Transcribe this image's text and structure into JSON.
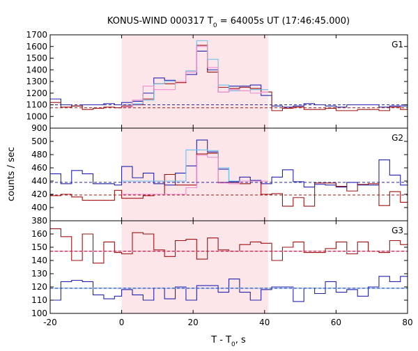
{
  "chart_data": {
    "type": "line",
    "title": "KONUS-WIND 000317 T",
    "title_sub": "0",
    "title_rest": " = 64005s UT (17:46:45.000)",
    "xlabel": "T - T",
    "xlabel_sub": "0",
    "xlabel_rest": ", s",
    "ylabel": "counts / sec",
    "xlim": [
      -20,
      80
    ],
    "xticks": [
      -20,
      0,
      20,
      40,
      60,
      80
    ],
    "highlight_interval": [
      0,
      41
    ],
    "colors": {
      "blue": "#2323b0",
      "red": "#a01010",
      "light_blue": "#6ac0ea",
      "pink": "#f08cd2",
      "band": "#fde6ea"
    },
    "panels": [
      {
        "label": "G1",
        "ylim": [
          900,
          1700
        ],
        "yticks": [
          900,
          1000,
          1100,
          1200,
          1300,
          1400,
          1500,
          1600,
          1700
        ],
        "background_levels": {
          "blue": 1100,
          "red": 1075
        },
        "series": [
          {
            "key": "blue",
            "x": [
              -20,
              -17,
              -14,
              -11,
              -8,
              -5,
              -2,
              0,
              3,
              6,
              9,
              12,
              15,
              18,
              21,
              24,
              27,
              30,
              33,
              36,
              39,
              42,
              45,
              48,
              51,
              54,
              57,
              60,
              63,
              66,
              69,
              72,
              75,
              78,
              80
            ],
            "values": [
              1150,
              1100,
              1090,
              1100,
              1100,
              1110,
              1100,
              1120,
              1130,
              1200,
              1330,
              1310,
              1300,
              1360,
              1560,
              1400,
              1210,
              1260,
              1260,
              1270,
              1180,
              1090,
              1080,
              1090,
              1110,
              1100,
              1090,
              1080,
              1100,
              1100,
              1100,
              1080,
              1090,
              1090,
              1100
            ]
          },
          {
            "key": "red",
            "x": [
              -20,
              -17,
              -14,
              -11,
              -8,
              -5,
              -2,
              0,
              3,
              6,
              9,
              12,
              15,
              18,
              21,
              24,
              27,
              30,
              33,
              36,
              39,
              42,
              45,
              48,
              51,
              54,
              57,
              60,
              63,
              66,
              69,
              72,
              75,
              78,
              80
            ],
            "values": [
              1120,
              1080,
              1090,
              1060,
              1070,
              1080,
              1075,
              1090,
              1100,
              1150,
              1280,
              1280,
              1290,
              1390,
              1610,
              1380,
              1250,
              1240,
              1250,
              1240,
              1210,
              1050,
              1070,
              1080,
              1060,
              1060,
              1070,
              1050,
              1050,
              1060,
              1060,
              1050,
              1080,
              1060,
              1070
            ]
          },
          {
            "key": "light_blue",
            "x": [
              0,
              3,
              6,
              9,
              12,
              15,
              18,
              21,
              24,
              27,
              30,
              33,
              36,
              39,
              41
            ],
            "values": [
              1100,
              1110,
              1140,
              1280,
              1300,
              1300,
              1390,
              1650,
              1490,
              1270,
              1220,
              1220,
              1230,
              1230,
              1230
            ]
          },
          {
            "key": "pink",
            "x": [
              0,
              3,
              6,
              9,
              12,
              15,
              18,
              21,
              24,
              27,
              30,
              33,
              36,
              39,
              41
            ],
            "values": [
              1080,
              1140,
              1260,
              1230,
              1230,
              1300,
              1380,
              1600,
              1420,
              1210,
              1230,
              1220,
              1200,
              1210,
              1210
            ]
          }
        ]
      },
      {
        "label": "G2",
        "ylim": [
          380,
          520
        ],
        "yticks": [
          380,
          400,
          420,
          440,
          460,
          480,
          500
        ],
        "background_levels": {
          "blue": 438,
          "red": 419
        },
        "series": [
          {
            "key": "blue",
            "x": [
              -20,
              -17,
              -14,
              -11,
              -8,
              -5,
              -2,
              0,
              3,
              6,
              9,
              12,
              15,
              18,
              21,
              24,
              27,
              30,
              33,
              36,
              39,
              42,
              45,
              48,
              51,
              54,
              57,
              60,
              63,
              66,
              69,
              72,
              75,
              78,
              80
            ],
            "values": [
              451,
              436,
              456,
              451,
              436,
              436,
              434,
              462,
              445,
              452,
              436,
              434,
              452,
              463,
              502,
              484,
              458,
              439,
              446,
              441,
              436,
              446,
              457,
              439,
              431,
              435,
              434,
              431,
              438,
              434,
              434,
              472,
              449,
              434,
              430
            ]
          },
          {
            "key": "red",
            "x": [
              -20,
              -17,
              -14,
              -11,
              -8,
              -5,
              -2,
              0,
              3,
              6,
              9,
              12,
              15,
              18,
              21,
              24,
              27,
              30,
              33,
              36,
              39,
              42,
              45,
              48,
              51,
              54,
              57,
              60,
              63,
              66,
              69,
              72,
              75,
              78,
              80
            ],
            "values": [
              418,
              420,
              416,
              411,
              411,
              411,
              426,
              414,
              414,
              418,
              420,
              450,
              434,
              434,
              481,
              482,
              438,
              438,
              436,
              440,
              420,
              421,
              402,
              415,
              402,
              437,
              437,
              432,
              425,
              435,
              436,
              403,
              424,
              408,
              418
            ]
          },
          {
            "key": "light_blue",
            "x": [
              0,
              3,
              6,
              9,
              12,
              15,
              18,
              21,
              24,
              27,
              30,
              33,
              36,
              39,
              41
            ],
            "values": [
              440,
              440,
              440,
              440,
              440,
              440,
              487,
              487,
              486,
              460,
              440,
              440,
              440,
              440,
              440
            ]
          },
          {
            "key": "pink",
            "x": [
              0,
              3,
              6,
              9,
              12,
              15,
              18,
              21,
              24,
              27,
              30,
              33,
              36,
              39,
              41
            ],
            "values": [
              420,
              420,
              420,
              420,
              420,
              420,
              430,
              479,
              476,
              437,
              436,
              440,
              440,
              440,
              440
            ]
          }
        ]
      },
      {
        "label": "G3",
        "ylim": [
          100,
          170
        ],
        "yticks": [
          100,
          110,
          120,
          130,
          140,
          150,
          160
        ],
        "background_levels": {
          "blue": 119,
          "red": 147
        },
        "series": [
          {
            "key": "blue",
            "x": [
              -20,
              -17,
              -14,
              -11,
              -8,
              -5,
              -2,
              0,
              3,
              6,
              9,
              12,
              15,
              18,
              21,
              24,
              27,
              30,
              33,
              36,
              39,
              42,
              45,
              48,
              51,
              54,
              57,
              60,
              63,
              66,
              69,
              72,
              75,
              78,
              80
            ],
            "values": [
              110,
              124,
              125,
              124,
              114,
              111,
              113,
              118,
              114,
              110,
              119,
              111,
              120,
              110,
              121,
              121,
              116,
              126,
              116,
              110,
              118,
              120,
              120,
              109,
              119,
              115,
              124,
              116,
              118,
              113,
              120,
              128,
              124,
              128,
              122
            ]
          },
          {
            "key": "red",
            "x": [
              -20,
              -17,
              -14,
              -11,
              -8,
              -5,
              -2,
              0,
              3,
              6,
              9,
              12,
              15,
              18,
              21,
              24,
              27,
              30,
              33,
              36,
              39,
              42,
              45,
              48,
              51,
              54,
              57,
              60,
              63,
              66,
              69,
              72,
              75,
              78,
              80
            ],
            "values": [
              164,
              158,
              140,
              160,
              138,
              154,
              146,
              145,
              161,
              160,
              148,
              143,
              155,
              156,
              141,
              157,
              148,
              147,
              152,
              154,
              153,
              140,
              150,
              154,
              146,
              146,
              149,
              154,
              145,
              154,
              147,
              146,
              155,
              152,
              145
            ]
          },
          {
            "key": "light_blue",
            "x": [
              -20,
              80
            ],
            "values": [
              119,
              119
            ]
          },
          {
            "key": "pink",
            "x": [
              -20,
              80
            ],
            "values": [
              147,
              147
            ]
          }
        ]
      }
    ]
  }
}
